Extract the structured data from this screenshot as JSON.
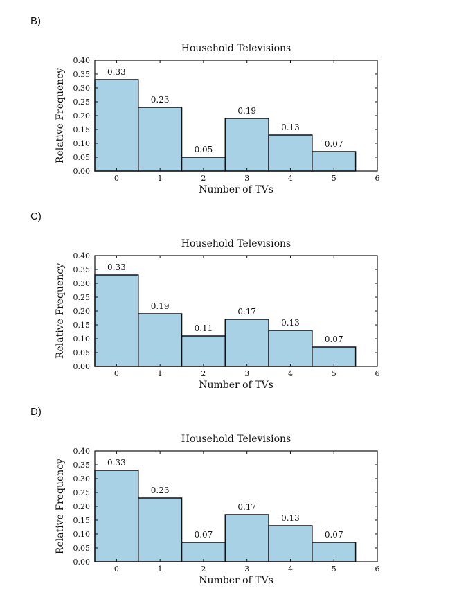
{
  "options": [
    {
      "label": "B)"
    },
    {
      "label": "C)"
    },
    {
      "label": "D)"
    }
  ],
  "chart_data": [
    {
      "type": "bar",
      "title": "Household Televisions",
      "xlabel": "Number of TVs",
      "ylabel": "Relative Frequency",
      "categories": [
        "0",
        "1",
        "2",
        "3",
        "4",
        "5"
      ],
      "values": [
        0.33,
        0.23,
        0.05,
        0.19,
        0.13,
        0.07
      ],
      "data_labels": [
        "0.33",
        "0.23",
        "0.05",
        "0.19",
        "0.13",
        "0.07"
      ],
      "xticks": [
        "0",
        "1",
        "2",
        "3",
        "4",
        "5",
        "6"
      ],
      "yticks": [
        "0.00",
        "0.05",
        "0.10",
        "0.15",
        "0.20",
        "0.25",
        "0.30",
        "0.35",
        "0.40"
      ],
      "xlim": [
        -0.5,
        6
      ],
      "ylim": [
        0,
        0.4
      ],
      "bar_color": "#a8d1e6",
      "edge_color": "#111111",
      "grid": false
    },
    {
      "type": "bar",
      "title": "Household Televisions",
      "xlabel": "Number of TVs",
      "ylabel": "Relative Frequency",
      "categories": [
        "0",
        "1",
        "2",
        "3",
        "4",
        "5"
      ],
      "values": [
        0.33,
        0.19,
        0.11,
        0.17,
        0.13,
        0.07
      ],
      "data_labels": [
        "0.33",
        "0.19",
        "0.11",
        "0.17",
        "0.13",
        "0.07"
      ],
      "xticks": [
        "0",
        "1",
        "2",
        "3",
        "4",
        "5",
        "6"
      ],
      "yticks": [
        "0.00",
        "0.05",
        "0.10",
        "0.15",
        "0.20",
        "0.25",
        "0.30",
        "0.35",
        "0.40"
      ],
      "xlim": [
        -0.5,
        6
      ],
      "ylim": [
        0,
        0.4
      ],
      "bar_color": "#a8d1e6",
      "edge_color": "#111111",
      "grid": false
    },
    {
      "type": "bar",
      "title": "Household Televisions",
      "xlabel": "Number of TVs",
      "ylabel": "Relative Frequency",
      "categories": [
        "0",
        "1",
        "2",
        "3",
        "4",
        "5"
      ],
      "values": [
        0.33,
        0.23,
        0.07,
        0.17,
        0.13,
        0.07
      ],
      "data_labels": [
        "0.33",
        "0.23",
        "0.07",
        "0.17",
        "0.13",
        "0.07"
      ],
      "xticks": [
        "0",
        "1",
        "2",
        "3",
        "4",
        "5",
        "6"
      ],
      "yticks": [
        "0.00",
        "0.05",
        "0.10",
        "0.15",
        "0.20",
        "0.25",
        "0.30",
        "0.35",
        "0.40"
      ],
      "xlim": [
        -0.5,
        6
      ],
      "ylim": [
        0,
        0.4
      ],
      "bar_color": "#a8d1e6",
      "edge_color": "#111111",
      "grid": false
    }
  ]
}
